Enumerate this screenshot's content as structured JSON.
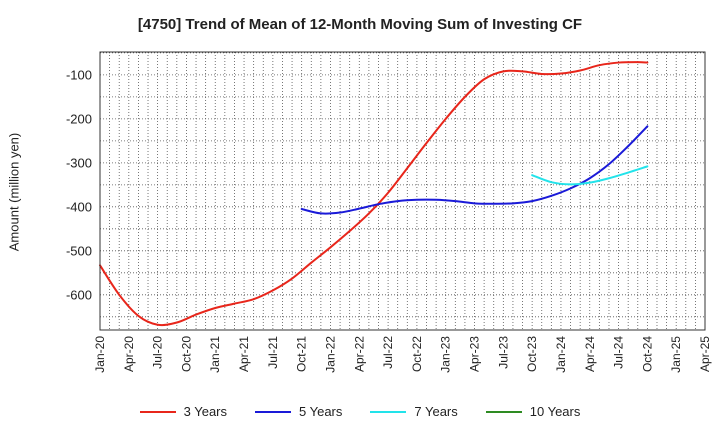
{
  "chart_data": {
    "type": "line",
    "title": "[4750]  Trend of Mean of 12-Month Moving Sum of Investing CF",
    "ylabel": "Amount (million yen)",
    "xlabel": "",
    "x_tick_labels": [
      "Jan-20",
      "Apr-20",
      "Jul-20",
      "Oct-20",
      "Jan-21",
      "Apr-21",
      "Jul-21",
      "Oct-21",
      "Jan-22",
      "Apr-22",
      "Jul-22",
      "Oct-22",
      "Jan-23",
      "Apr-23",
      "Jul-23",
      "Oct-23",
      "Jan-24",
      "Apr-24",
      "Jul-24",
      "Oct-24",
      "Jan-25",
      "Apr-25"
    ],
    "y_ticks": [
      -100,
      -200,
      -300,
      -400,
      -500,
      -600
    ],
    "ylim": [
      -680,
      -48
    ],
    "xlim": [
      "Jan-20",
      "Apr-25"
    ],
    "grid": true,
    "legend_position": "bottom",
    "series": [
      {
        "name": "3 Years",
        "color": "#e8261b",
        "x": [
          "Jan-20",
          "Mar-20",
          "May-20",
          "Jul-20",
          "Sep-20",
          "Nov-20",
          "Jan-21",
          "Mar-21",
          "May-21",
          "Jul-21",
          "Sep-21",
          "Nov-21",
          "Jan-22",
          "Mar-22",
          "May-22",
          "Jul-22",
          "Sep-22",
          "Nov-22",
          "Jan-23",
          "Mar-23",
          "May-23",
          "Jul-23",
          "Sep-23",
          "Nov-23",
          "Jan-24",
          "Mar-24",
          "May-24",
          "Jul-24",
          "Sep-24",
          "Oct-24"
        ],
        "y": [
          -533,
          -600,
          -648,
          -668,
          -663,
          -645,
          -630,
          -620,
          -610,
          -590,
          -563,
          -527,
          -492,
          -455,
          -415,
          -368,
          -312,
          -255,
          -200,
          -150,
          -110,
          -92,
          -92,
          -98,
          -97,
          -90,
          -78,
          -72,
          -71,
          -72
        ]
      },
      {
        "name": "5 Years",
        "color": "#1a1ad8",
        "x": [
          "Oct-21",
          "Dec-21",
          "Feb-22",
          "Apr-22",
          "Jun-22",
          "Aug-22",
          "Oct-22",
          "Dec-22",
          "Feb-23",
          "Apr-23",
          "Jun-23",
          "Aug-23",
          "Oct-23",
          "Dec-23",
          "Feb-24",
          "Apr-24",
          "Jun-24",
          "Aug-24",
          "Oct-24"
        ],
        "y": [
          -405,
          -415,
          -413,
          -404,
          -394,
          -387,
          -384,
          -384,
          -387,
          -392,
          -393,
          -392,
          -387,
          -375,
          -358,
          -335,
          -303,
          -262,
          -217
        ]
      },
      {
        "name": "7 Years",
        "color": "#22e3ea",
        "x": [
          "Oct-23",
          "Dec-23",
          "Feb-24",
          "Apr-24",
          "Jun-24",
          "Aug-24",
          "Oct-24"
        ],
        "y": [
          -328,
          -344,
          -349,
          -345,
          -335,
          -322,
          -308
        ]
      },
      {
        "name": "10 Years",
        "color": "#2e8b22",
        "x": [],
        "y": []
      }
    ]
  }
}
